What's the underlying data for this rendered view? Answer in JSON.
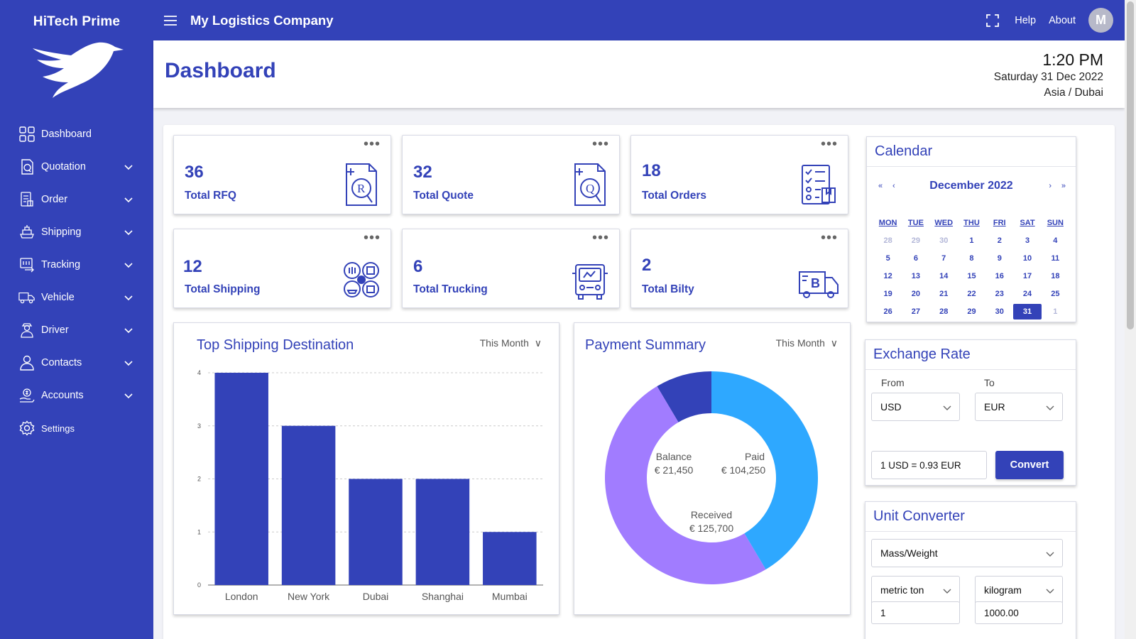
{
  "sidebar": {
    "brand": "HiTech Prime",
    "items": [
      {
        "label": "Dashboard",
        "icon": "dashboard-icon"
      },
      {
        "label": "Quotation",
        "icon": "quotation-icon"
      },
      {
        "label": "Order",
        "icon": "order-icon"
      },
      {
        "label": "Shipping",
        "icon": "shipping-icon"
      },
      {
        "label": "Tracking",
        "icon": "tracking-icon"
      },
      {
        "label": "Vehicle",
        "icon": "vehicle-icon"
      },
      {
        "label": "Driver",
        "icon": "driver-icon"
      },
      {
        "label": "Contacts",
        "icon": "contacts-icon"
      },
      {
        "label": "Accounts",
        "icon": "accounts-icon"
      },
      {
        "label": "Settings",
        "icon": "settings-icon"
      }
    ]
  },
  "topbar": {
    "company": "My Logistics Company",
    "help": "Help",
    "about": "About",
    "avatar_initial": "M"
  },
  "header": {
    "title": "Dashboard",
    "time": "1:20 PM",
    "date": "Saturday 31 Dec 2022",
    "timezone": "Asia / Dubai"
  },
  "stats": [
    {
      "value": "36",
      "label": "Total RFQ"
    },
    {
      "value": "32",
      "label": "Total Quote"
    },
    {
      "value": "18",
      "label": "Total Orders"
    },
    {
      "value": "12",
      "label": "Total Shipping"
    },
    {
      "value": "6",
      "label": "Total Trucking"
    },
    {
      "value": "2",
      "label": "Total Bilty"
    }
  ],
  "top_shipping": {
    "title": "Top Shipping Destination",
    "period": "This Month"
  },
  "payment": {
    "title": "Payment Summary",
    "period": "This Month",
    "balance_label": "Balance",
    "balance_value": "€ 21,450",
    "paid_label": "Paid",
    "paid_value": "€ 104,250",
    "received_label": "Received",
    "received_value": "€ 125,700"
  },
  "chart_data": [
    {
      "type": "bar",
      "title": "Top Shipping Destination",
      "categories": [
        "London",
        "New York",
        "Dubai",
        "Shanghai",
        "Mumbai"
      ],
      "values": [
        4,
        3,
        2,
        2,
        1
      ],
      "yticks": [
        "0",
        "1",
        "2",
        "3",
        "4"
      ],
      "ylim": [
        0,
        4
      ],
      "grid": true,
      "color": "#3342b8"
    },
    {
      "type": "pie",
      "title": "Payment Summary",
      "labels": [
        "Paid",
        "Received",
        "Balance"
      ],
      "values": [
        104250,
        125700,
        21450
      ],
      "colors": [
        "#2ea8ff",
        "#a17cff",
        "#3342b8"
      ]
    }
  ],
  "calendar": {
    "title": "Calendar",
    "month": "December 2022",
    "first": "«",
    "prev": "‹",
    "next": "›",
    "last": "»",
    "dow": [
      "MON",
      "TUE",
      "WED",
      "THU",
      "FRI",
      "SAT",
      "SUN"
    ],
    "weeks": [
      [
        "28",
        "29",
        "30",
        "1",
        "2",
        "3",
        "4"
      ],
      [
        "5",
        "6",
        "7",
        "8",
        "9",
        "10",
        "11"
      ],
      [
        "12",
        "13",
        "14",
        "15",
        "16",
        "17",
        "18"
      ],
      [
        "19",
        "20",
        "21",
        "22",
        "23",
        "24",
        "25"
      ],
      [
        "26",
        "27",
        "28",
        "29",
        "30",
        "31",
        "1"
      ]
    ],
    "muted": [
      [
        0,
        0
      ],
      [
        0,
        1
      ],
      [
        0,
        2
      ],
      [
        4,
        6
      ]
    ],
    "selected": [
      4,
      5
    ]
  },
  "exchange": {
    "title": "Exchange Rate",
    "from_label": "From",
    "to_label": "To",
    "from": "USD",
    "to": "EUR",
    "result": "1 USD = 0.93 EUR",
    "convert": "Convert"
  },
  "units": {
    "title": "Unit Converter",
    "category": "Mass/Weight",
    "from_unit": "metric ton",
    "to_unit": "kilogram",
    "from_value": "1",
    "to_value": "1000.00"
  }
}
